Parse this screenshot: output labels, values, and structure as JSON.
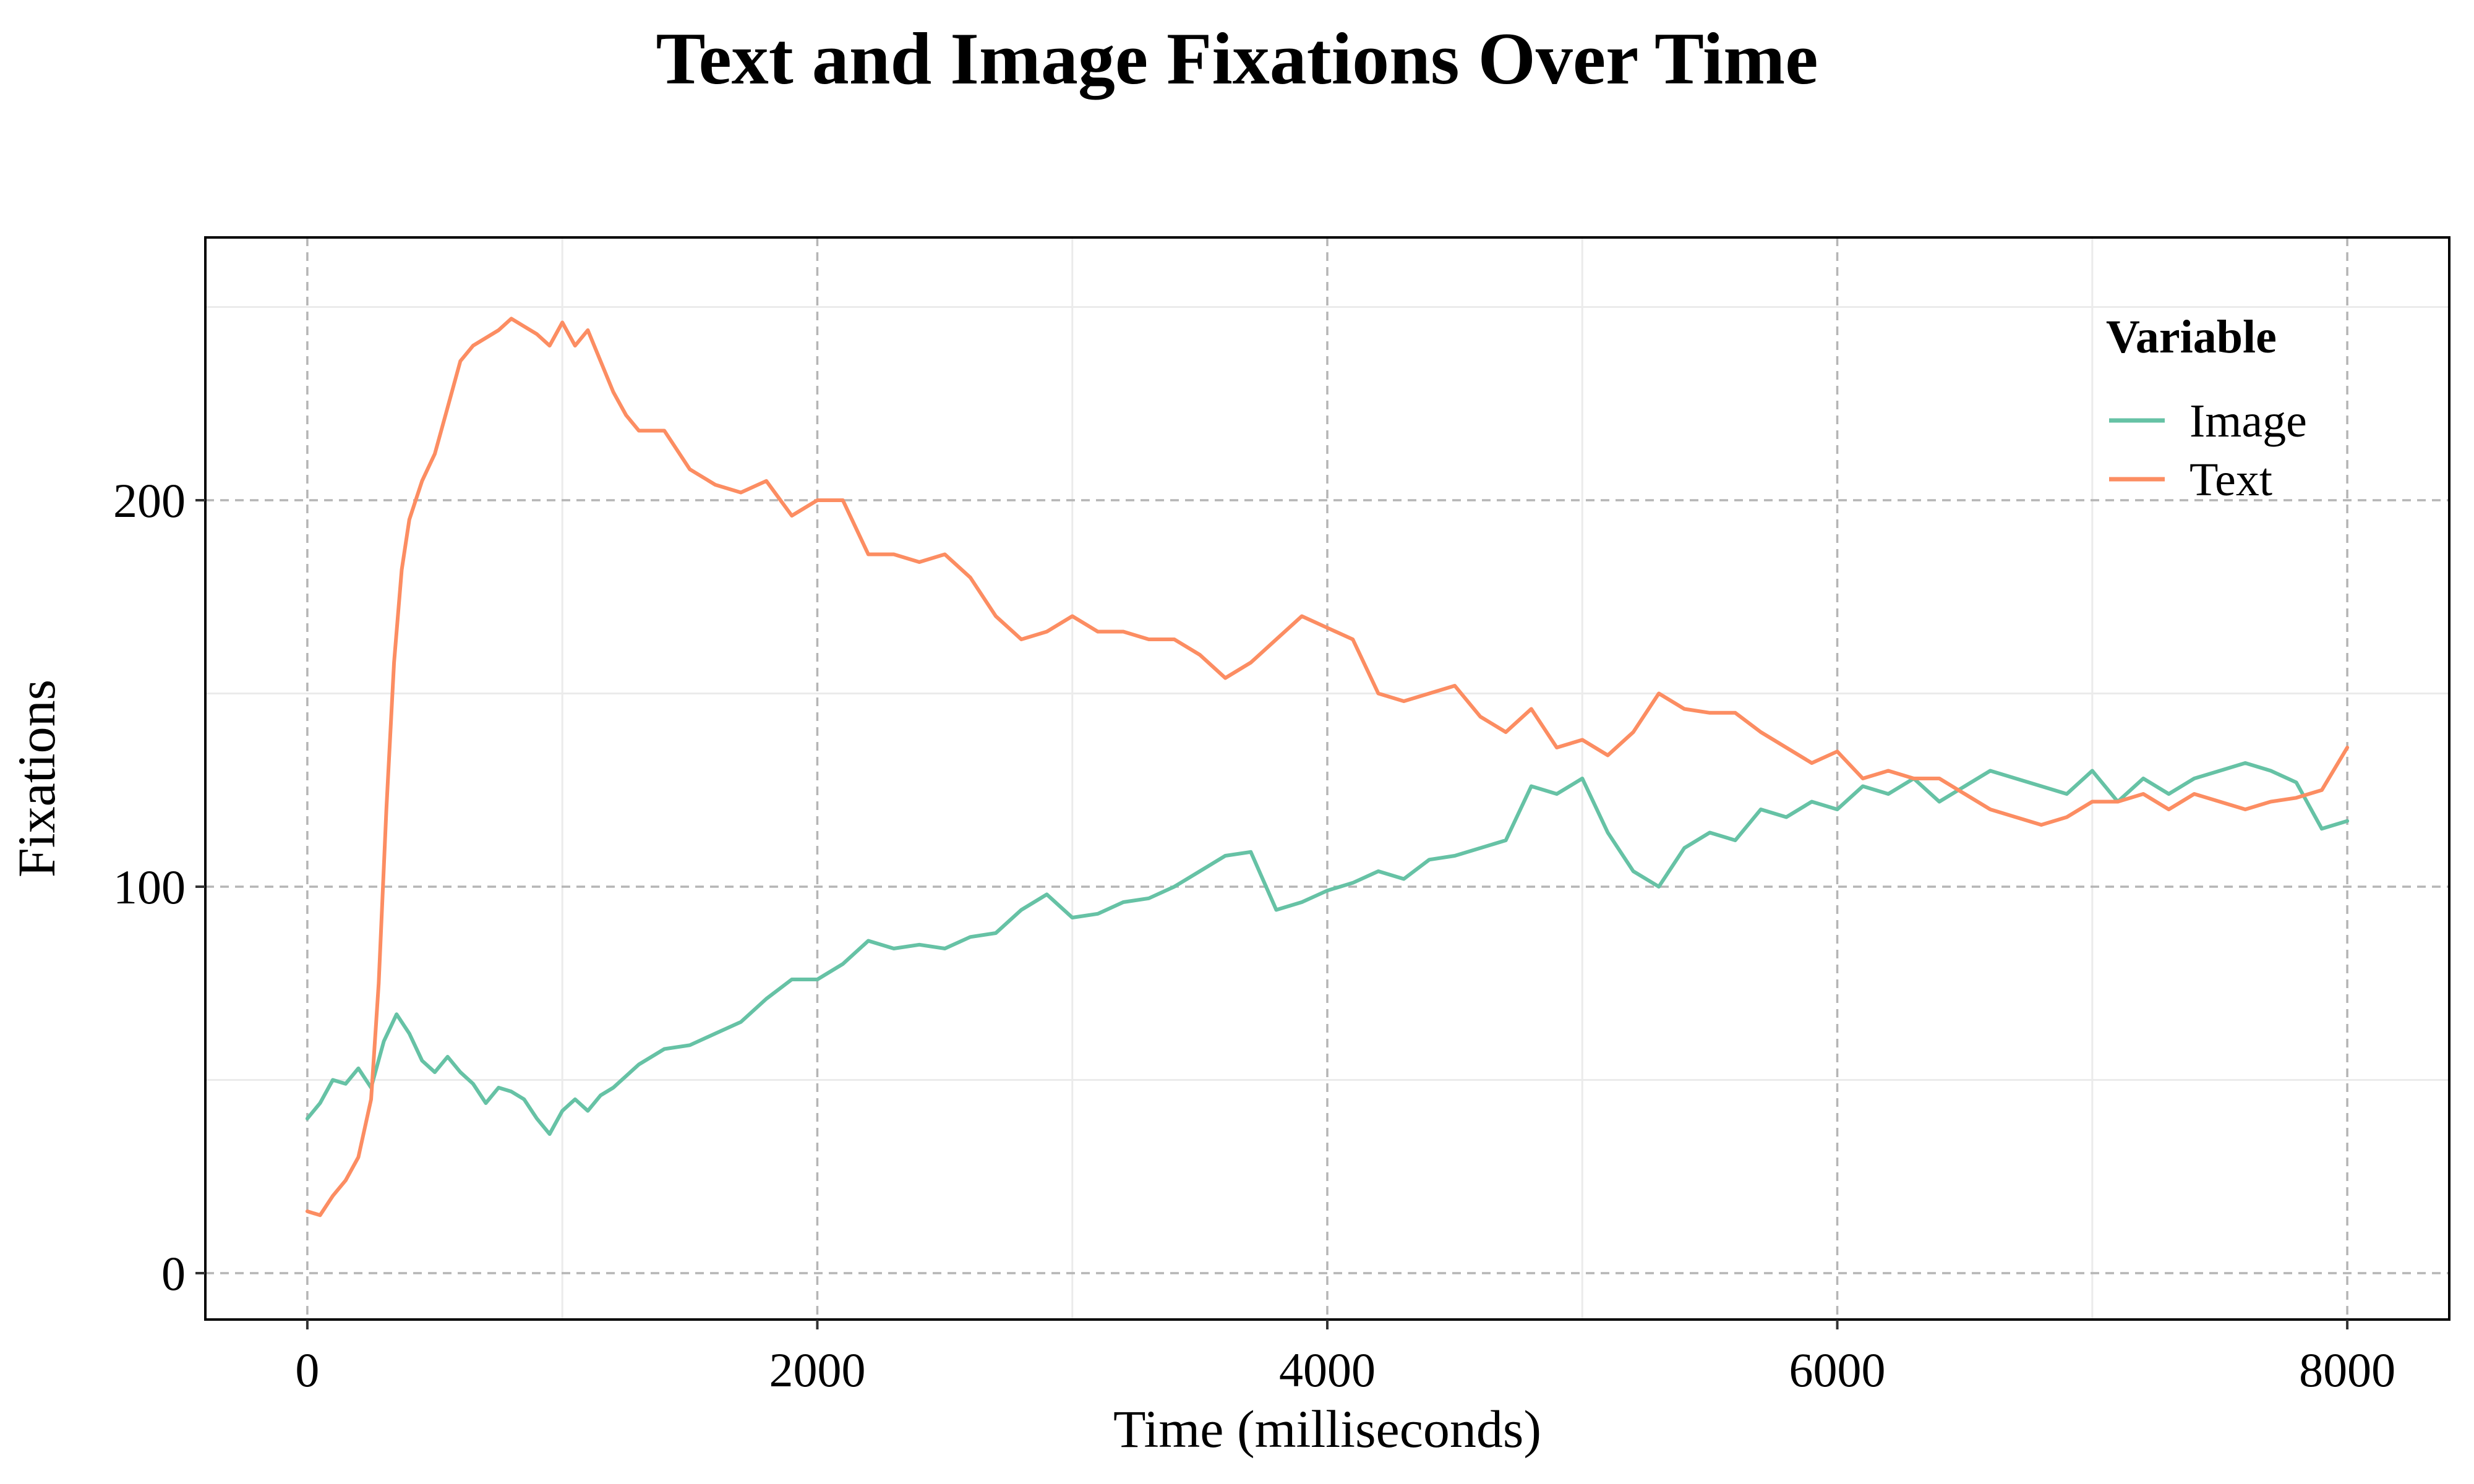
{
  "chart_data": {
    "type": "line",
    "title": "Text and Image Fixations Over Time",
    "xlabel": "Time (milliseconds)",
    "ylabel": "Fixations",
    "xlim": [
      -400,
      8400
    ],
    "ylim": [
      -12,
      268
    ],
    "x_ticks": [
      0,
      2000,
      4000,
      6000,
      8000
    ],
    "x_tick_labels": [
      "0",
      "2000",
      "4000",
      "6000",
      "8000"
    ],
    "y_ticks": [
      0,
      100,
      200
    ],
    "y_tick_labels": [
      "0",
      "100",
      "200"
    ],
    "grid": true,
    "legend": {
      "title": "Variable",
      "position": "top-right"
    },
    "series": [
      {
        "name": "Image",
        "color": "#66c2a5",
        "x": [
          0,
          50,
          100,
          150,
          200,
          250,
          300,
          350,
          400,
          450,
          500,
          550,
          600,
          650,
          700,
          750,
          800,
          850,
          900,
          950,
          1000,
          1050,
          1100,
          1150,
          1200,
          1300,
          1400,
          1500,
          1600,
          1700,
          1800,
          1900,
          2000,
          2100,
          2200,
          2300,
          2400,
          2500,
          2600,
          2700,
          2800,
          2900,
          3000,
          3100,
          3200,
          3300,
          3400,
          3500,
          3600,
          3700,
          3800,
          3900,
          4000,
          4100,
          4200,
          4300,
          4400,
          4500,
          4600,
          4700,
          4800,
          4900,
          5000,
          5100,
          5200,
          5300,
          5400,
          5500,
          5600,
          5700,
          5800,
          5900,
          6000,
          6100,
          6200,
          6300,
          6400,
          6500,
          6600,
          6700,
          6800,
          6900,
          7000,
          7100,
          7200,
          7300,
          7400,
          7500,
          7600,
          7700,
          7800,
          7900,
          8000
        ],
        "values": [
          40,
          44,
          50,
          49,
          53,
          48,
          60,
          67,
          62,
          55,
          52,
          56,
          52,
          49,
          44,
          48,
          47,
          45,
          40,
          36,
          42,
          45,
          42,
          46,
          48,
          54,
          58,
          59,
          62,
          65,
          71,
          76,
          76,
          80,
          86,
          84,
          85,
          84,
          87,
          88,
          94,
          98,
          92,
          93,
          96,
          97,
          100,
          104,
          108,
          109,
          94,
          96,
          99,
          101,
          104,
          102,
          107,
          108,
          110,
          112,
          126,
          124,
          128,
          114,
          104,
          100,
          110,
          114,
          112,
          120,
          118,
          122,
          120,
          126,
          124,
          128,
          122,
          126,
          130,
          128,
          126,
          124,
          130,
          122,
          128,
          124,
          128,
          130,
          132,
          130,
          127,
          115,
          117
        ]
      },
      {
        "name": "Text",
        "color": "#fc8d62",
        "x": [
          0,
          50,
          100,
          150,
          200,
          250,
          280,
          310,
          340,
          370,
          400,
          450,
          500,
          550,
          600,
          650,
          700,
          750,
          800,
          850,
          900,
          950,
          1000,
          1050,
          1100,
          1150,
          1200,
          1250,
          1300,
          1400,
          1500,
          1600,
          1700,
          1800,
          1900,
          2000,
          2100,
          2200,
          2300,
          2400,
          2500,
          2600,
          2700,
          2800,
          2900,
          3000,
          3100,
          3200,
          3300,
          3400,
          3500,
          3600,
          3700,
          3800,
          3900,
          4000,
          4100,
          4200,
          4300,
          4400,
          4500,
          4600,
          4700,
          4800,
          4900,
          5000,
          5100,
          5200,
          5300,
          5400,
          5500,
          5600,
          5700,
          5800,
          5900,
          6000,
          6100,
          6200,
          6300,
          6400,
          6500,
          6600,
          6700,
          6800,
          6900,
          7000,
          7100,
          7200,
          7300,
          7400,
          7500,
          7600,
          7700,
          7800,
          7900,
          8000
        ],
        "values": [
          16,
          15,
          20,
          24,
          30,
          45,
          75,
          120,
          158,
          182,
          195,
          205,
          212,
          224,
          236,
          240,
          242,
          244,
          247,
          245,
          243,
          240,
          246,
          240,
          244,
          236,
          228,
          222,
          218,
          218,
          208,
          204,
          202,
          205,
          196,
          200,
          200,
          186,
          186,
          184,
          186,
          180,
          170,
          164,
          166,
          170,
          166,
          166,
          164,
          164,
          160,
          154,
          158,
          164,
          170,
          167,
          164,
          150,
          148,
          150,
          152,
          144,
          140,
          146,
          136,
          138,
          134,
          140,
          150,
          146,
          145,
          145,
          140,
          136,
          132,
          135,
          128,
          130,
          128,
          128,
          124,
          120,
          118,
          116,
          118,
          122,
          122,
          124,
          120,
          124,
          122,
          120,
          122,
          123,
          125,
          136
        ]
      }
    ]
  }
}
